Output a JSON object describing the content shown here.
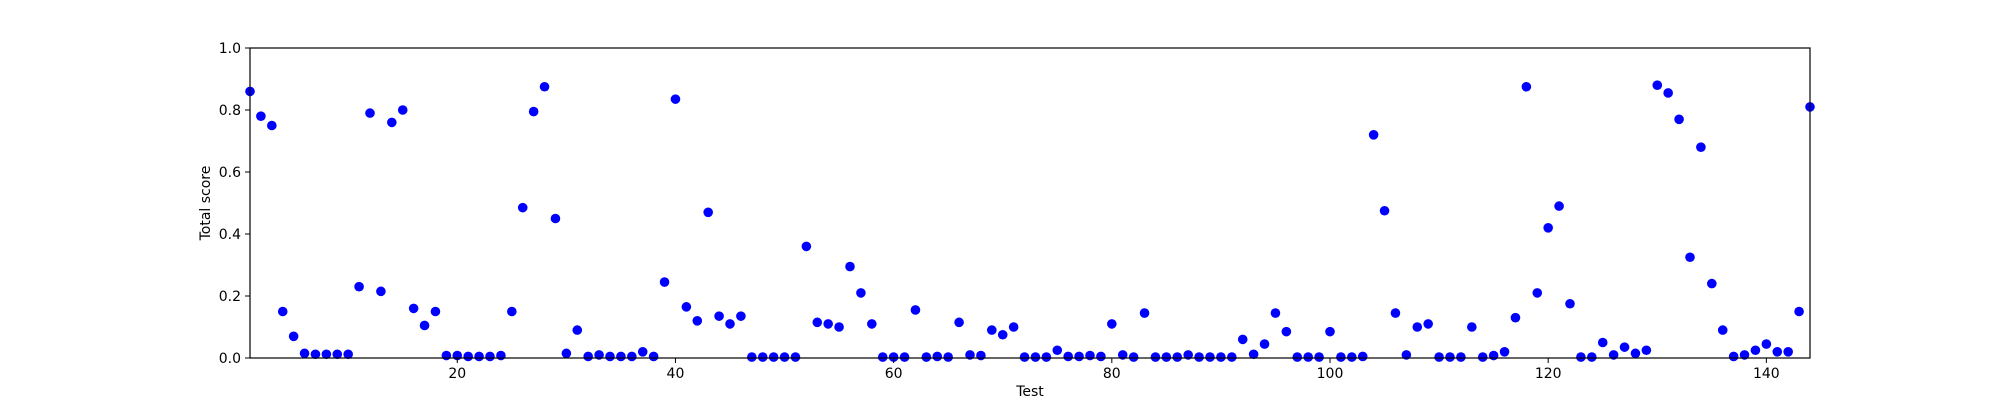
{
  "chart_data": {
    "type": "scatter",
    "title": "",
    "xlabel": "Test",
    "ylabel": "Total score",
    "xlim": [
      1,
      144
    ],
    "ylim": [
      0,
      1.0
    ],
    "x_ticks": [
      20,
      40,
      60,
      80,
      100,
      120,
      140
    ],
    "y_ticks": [
      0.0,
      0.2,
      0.4,
      0.6,
      0.8,
      1.0
    ],
    "x_tick_labels": [
      "20",
      "40",
      "60",
      "80",
      "100",
      "120",
      "140"
    ],
    "y_tick_labels": [
      "0.0",
      "0.2",
      "0.4",
      "0.6",
      "0.8",
      "1.0"
    ],
    "grid": false,
    "marker_color": "#0000ff",
    "series": [
      {
        "x": [
          1,
          2,
          3,
          4,
          5,
          6,
          7,
          8,
          9,
          10,
          11,
          12,
          13,
          14,
          15,
          16,
          17,
          18,
          19,
          20,
          21,
          22,
          23,
          24,
          25,
          26,
          27,
          28,
          29,
          30,
          31,
          32,
          33,
          34,
          35,
          36,
          37,
          38,
          39,
          40,
          41,
          42,
          43,
          44,
          45,
          46,
          47,
          48,
          49,
          50,
          51,
          52,
          53,
          54,
          55,
          56,
          57,
          58,
          59,
          60,
          61,
          62,
          63,
          64,
          65,
          66,
          67,
          68,
          69,
          70,
          71,
          72,
          73,
          74,
          75,
          76,
          77,
          78,
          79,
          80,
          81,
          82,
          83,
          84,
          85,
          86,
          87,
          88,
          89,
          90,
          91,
          92,
          93,
          94,
          95,
          96,
          97,
          98,
          99,
          100,
          101,
          102,
          103,
          104,
          105,
          106,
          107,
          108,
          109,
          110,
          111,
          112,
          113,
          114,
          115,
          116,
          117,
          118,
          119,
          120,
          121,
          122,
          123,
          124,
          125,
          126,
          127,
          128,
          129,
          130,
          131,
          132,
          133,
          134,
          135,
          136,
          137,
          138,
          139,
          140,
          141,
          142,
          143,
          144
        ],
        "y": [
          0.86,
          0.78,
          0.75,
          0.15,
          0.07,
          0.015,
          0.012,
          0.012,
          0.012,
          0.012,
          0.23,
          0.79,
          0.215,
          0.76,
          0.8,
          0.16,
          0.105,
          0.15,
          0.008,
          0.008,
          0.005,
          0.005,
          0.005,
          0.008,
          0.15,
          0.485,
          0.795,
          0.875,
          0.45,
          0.015,
          0.09,
          0.005,
          0.01,
          0.005,
          0.005,
          0.005,
          0.02,
          0.005,
          0.245,
          0.835,
          0.165,
          0.12,
          0.47,
          0.135,
          0.11,
          0.135,
          0.003,
          0.003,
          0.003,
          0.003,
          0.003,
          0.36,
          0.115,
          0.11,
          0.1,
          0.295,
          0.21,
          0.11,
          0.003,
          0.003,
          0.003,
          0.155,
          0.003,
          0.005,
          0.003,
          0.115,
          0.01,
          0.008,
          0.09,
          0.075,
          0.1,
          0.003,
          0.003,
          0.003,
          0.025,
          0.005,
          0.005,
          0.008,
          0.005,
          0.11,
          0.01,
          0.003,
          0.145,
          0.003,
          0.003,
          0.003,
          0.01,
          0.003,
          0.003,
          0.003,
          0.003,
          0.06,
          0.012,
          0.045,
          0.145,
          0.085,
          0.003,
          0.003,
          0.003,
          0.085,
          0.003,
          0.003,
          0.005,
          0.72,
          0.475,
          0.145,
          0.01,
          0.1,
          0.11,
          0.003,
          0.003,
          0.003,
          0.1,
          0.003,
          0.008,
          0.02,
          0.13,
          0.875,
          0.21,
          0.42,
          0.49,
          0.175,
          0.003,
          0.003,
          0.05,
          0.01,
          0.035,
          0.015,
          0.025,
          0.88,
          0.855,
          0.77,
          0.325,
          0.68,
          0.24,
          0.09,
          0.005,
          0.01,
          0.025,
          0.045,
          0.02,
          0.02,
          0.15,
          0.81
        ]
      }
    ]
  }
}
